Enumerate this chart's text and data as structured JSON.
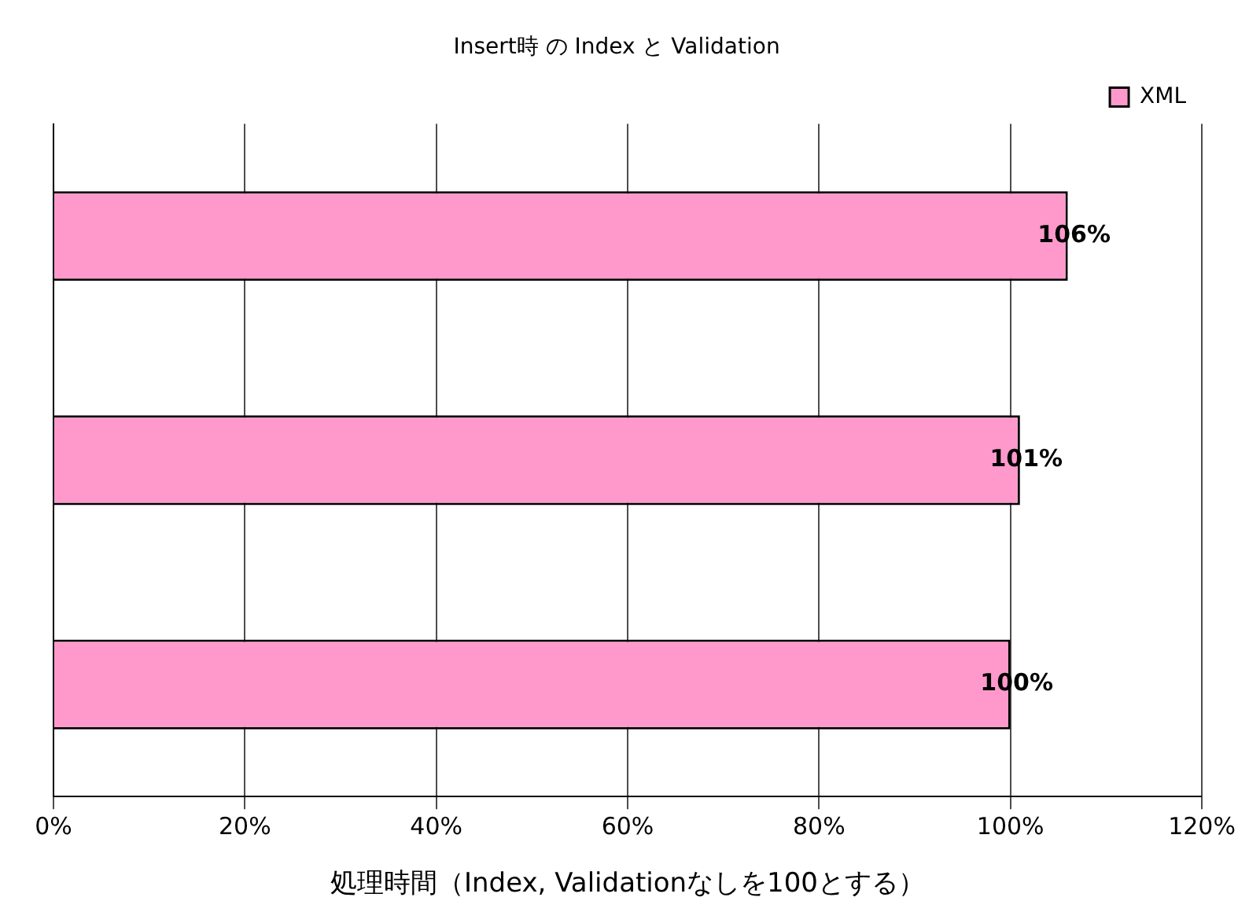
{
  "chart_data": {
    "type": "bar",
    "orientation": "horizontal",
    "title": "Insert時 の Index と Validation",
    "xlabel": "処理時間（Index, Validationなしを100とする）",
    "categories": [
      null,
      null,
      null
    ],
    "series": [
      {
        "name": "XML",
        "color": "#ff99cc",
        "values": [
          106,
          101,
          100
        ]
      }
    ],
    "value_labels": [
      "106%",
      "101%",
      "100%"
    ],
    "xlim": [
      0,
      120
    ],
    "xticks": [
      {
        "value": 0,
        "label": "0%"
      },
      {
        "value": 20,
        "label": "20%"
      },
      {
        "value": 40,
        "label": "40%"
      },
      {
        "value": 60,
        "label": "60%"
      },
      {
        "value": 80,
        "label": "80%"
      },
      {
        "value": 100,
        "label": "100%"
      },
      {
        "value": 120,
        "label": "120%"
      }
    ],
    "grid": "x",
    "legend": "top right"
  }
}
